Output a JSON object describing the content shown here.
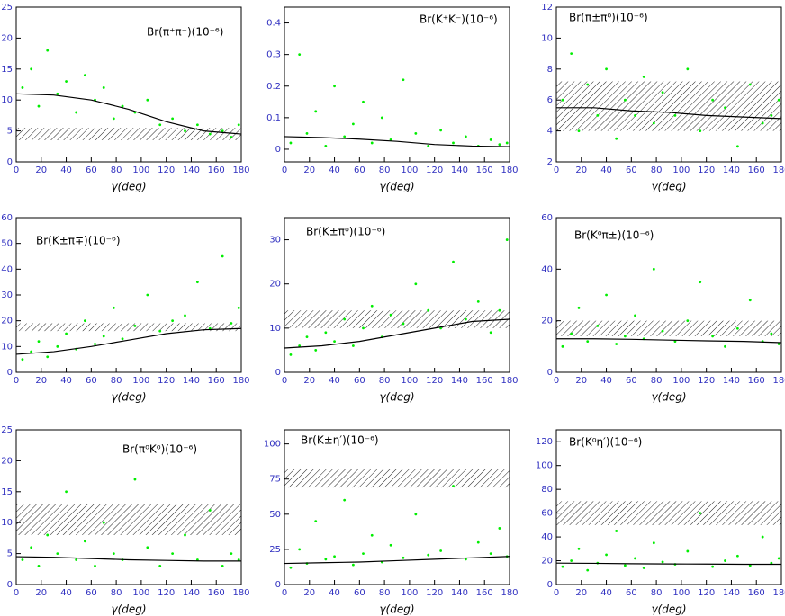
{
  "chart_data": [
    {
      "type": "scatter",
      "title": "Br(π⁺π⁻)(10⁻⁶)",
      "xlabel": "γ(deg)",
      "xlim": [
        0,
        180
      ],
      "xticks": [
        0,
        20,
        40,
        60,
        80,
        100,
        120,
        140,
        160,
        180
      ],
      "ylim": [
        0,
        25
      ],
      "yticks": [
        0,
        5,
        10,
        15,
        20,
        25
      ],
      "band": [
        3.5,
        5.5
      ],
      "points": {
        "color": "#00ee00",
        "x": [
          5,
          12,
          18,
          25,
          33,
          40,
          48,
          55,
          63,
          70,
          78,
          85,
          95,
          105,
          115,
          125,
          135,
          145,
          155,
          165,
          172,
          178
        ],
        "y": [
          12,
          15,
          9,
          18,
          11,
          13,
          8,
          14,
          10,
          12,
          7,
          9,
          8,
          10,
          6,
          7,
          5,
          6,
          4.5,
          5,
          4,
          6
        ]
      },
      "curve": {
        "color": "#000000",
        "x": [
          0,
          30,
          60,
          90,
          120,
          150,
          180
        ],
        "y": [
          11,
          10.8,
          10,
          8.5,
          6.5,
          5,
          4.5
        ]
      }
    },
    {
      "type": "scatter",
      "title": "Br(K⁺K⁻)(10⁻⁶)",
      "xlabel": "γ(deg)",
      "xlim": [
        0,
        180
      ],
      "xticks": [
        0,
        20,
        40,
        60,
        80,
        100,
        120,
        140,
        160,
        180
      ],
      "ylim": [
        -0.04,
        0.45
      ],
      "yticks": [
        0,
        0.1,
        0.2,
        0.3,
        0.4
      ],
      "points": {
        "color": "#00ee00",
        "x": [
          5,
          12,
          18,
          25,
          33,
          40,
          48,
          55,
          63,
          70,
          78,
          85,
          95,
          105,
          115,
          125,
          135,
          145,
          155,
          165,
          172,
          178
        ],
        "y": [
          0.02,
          0.3,
          0.05,
          0.12,
          0.01,
          0.2,
          0.04,
          0.08,
          0.15,
          0.02,
          0.1,
          0.03,
          0.22,
          0.05,
          0.01,
          0.06,
          0.02,
          0.04,
          0.01,
          0.03,
          0.015,
          0.02
        ]
      },
      "curve": {
        "color": "#000000",
        "x": [
          0,
          30,
          60,
          90,
          120,
          150,
          180
        ],
        "y": [
          0.04,
          0.037,
          0.032,
          0.025,
          0.015,
          0.01,
          0.008
        ]
      }
    },
    {
      "type": "scatter",
      "title": "Br(π±π⁰)(10⁻⁶)",
      "xlabel": "γ(deg)",
      "xlim": [
        0,
        180
      ],
      "xticks": [
        0,
        20,
        40,
        60,
        80,
        100,
        120,
        140,
        160,
        180
      ],
      "ylim": [
        2,
        12
      ],
      "yticks": [
        2,
        4,
        6,
        8,
        10,
        12
      ],
      "band": [
        4,
        7.2
      ],
      "points": {
        "color": "#00ee00",
        "x": [
          5,
          12,
          18,
          25,
          33,
          40,
          48,
          55,
          63,
          70,
          78,
          85,
          95,
          105,
          115,
          125,
          135,
          145,
          155,
          165,
          172,
          178
        ],
        "y": [
          6,
          9,
          4,
          7,
          5,
          8,
          3.5,
          6,
          5,
          7.5,
          4.5,
          6.5,
          5,
          8,
          4,
          6,
          5.5,
          3,
          7,
          4.5,
          5,
          6
        ]
      },
      "curve": {
        "color": "#000000",
        "x": [
          0,
          30,
          60,
          90,
          120,
          150,
          180
        ],
        "y": [
          5.5,
          5.5,
          5.3,
          5.2,
          5,
          4.9,
          4.8
        ]
      }
    },
    {
      "type": "scatter",
      "title": "Br(K±π∓)(10⁻⁶)",
      "xlabel": "γ(deg)",
      "xlim": [
        0,
        180
      ],
      "xticks": [
        0,
        20,
        40,
        60,
        80,
        100,
        120,
        140,
        160,
        180
      ],
      "ylim": [
        0,
        60
      ],
      "yticks": [
        0,
        10,
        20,
        30,
        40,
        50,
        60
      ],
      "band": [
        16,
        19
      ],
      "points": {
        "color": "#00ee00",
        "x": [
          5,
          12,
          18,
          25,
          33,
          40,
          48,
          55,
          63,
          70,
          78,
          85,
          95,
          105,
          115,
          125,
          135,
          145,
          155,
          165,
          172,
          178
        ],
        "y": [
          5,
          8,
          12,
          6,
          10,
          15,
          9,
          20,
          11,
          14,
          25,
          13,
          18,
          30,
          16,
          20,
          22,
          35,
          17,
          45,
          19,
          25
        ]
      },
      "curve": {
        "color": "#000000",
        "x": [
          0,
          30,
          60,
          90,
          120,
          150,
          180
        ],
        "y": [
          7,
          8,
          10,
          12.5,
          15,
          16.5,
          17
        ]
      }
    },
    {
      "type": "scatter",
      "title": "Br(K±π⁰)(10⁻⁶)",
      "xlabel": "γ(deg)",
      "xlim": [
        0,
        180
      ],
      "xticks": [
        0,
        20,
        40,
        60,
        80,
        100,
        120,
        140,
        160,
        180
      ],
      "ylim": [
        0,
        35
      ],
      "yticks": [
        0,
        10,
        20,
        30
      ],
      "band": [
        10,
        14
      ],
      "points": {
        "color": "#00ee00",
        "x": [
          5,
          12,
          18,
          25,
          33,
          40,
          48,
          55,
          63,
          70,
          78,
          85,
          95,
          105,
          115,
          125,
          135,
          145,
          155,
          165,
          172,
          178
        ],
        "y": [
          4,
          6,
          8,
          5,
          9,
          7,
          12,
          6,
          10,
          15,
          8,
          13,
          11,
          20,
          14,
          10,
          25,
          12,
          16,
          9,
          14,
          30
        ]
      },
      "curve": {
        "color": "#000000",
        "x": [
          0,
          30,
          60,
          90,
          120,
          150,
          180
        ],
        "y": [
          5.5,
          6,
          7,
          8.5,
          10,
          11.5,
          12
        ]
      }
    },
    {
      "type": "scatter",
      "title": "Br(K⁰π±)(10⁻⁶)",
      "xlabel": "γ(deg)",
      "xlim": [
        0,
        180
      ],
      "xticks": [
        0,
        20,
        40,
        60,
        80,
        100,
        120,
        140,
        160,
        180
      ],
      "ylim": [
        0,
        60
      ],
      "yticks": [
        0,
        20,
        40,
        60
      ],
      "band": [
        14,
        20
      ],
      "points": {
        "color": "#00ee00",
        "x": [
          5,
          12,
          18,
          25,
          33,
          40,
          48,
          55,
          63,
          70,
          78,
          85,
          95,
          105,
          115,
          125,
          135,
          145,
          155,
          165,
          172,
          178
        ],
        "y": [
          10,
          15,
          25,
          12,
          18,
          30,
          11,
          14,
          22,
          13,
          40,
          16,
          12,
          20,
          35,
          14,
          10,
          17,
          28,
          12,
          15,
          11
        ]
      },
      "curve": {
        "color": "#000000",
        "x": [
          0,
          30,
          60,
          90,
          120,
          150,
          180
        ],
        "y": [
          13,
          13,
          12.8,
          12.5,
          12.2,
          12,
          11.5
        ]
      }
    },
    {
      "type": "scatter",
      "title": "Br(π⁰K⁰)(10⁻⁶)",
      "xlabel": "γ(deg)",
      "xlim": [
        0,
        180
      ],
      "xticks": [
        0,
        20,
        40,
        60,
        80,
        100,
        120,
        140,
        160,
        180
      ],
      "ylim": [
        0,
        25
      ],
      "yticks": [
        0,
        5,
        10,
        15,
        20,
        25
      ],
      "band": [
        8,
        13
      ],
      "points": {
        "color": "#00ee00",
        "x": [
          5,
          12,
          18,
          25,
          33,
          40,
          48,
          55,
          63,
          70,
          78,
          85,
          95,
          105,
          115,
          125,
          135,
          145,
          155,
          165,
          172,
          178
        ],
        "y": [
          4,
          6,
          3,
          8,
          5,
          15,
          4,
          7,
          3,
          10,
          5,
          4,
          17,
          6,
          3,
          5,
          8,
          4,
          12,
          3,
          5,
          4
        ]
      },
      "curve": {
        "color": "#000000",
        "x": [
          0,
          30,
          60,
          90,
          120,
          150,
          180
        ],
        "y": [
          4.5,
          4.4,
          4.2,
          4,
          3.9,
          3.8,
          3.8
        ]
      }
    },
    {
      "type": "scatter",
      "title": "Br(K±η′)(10⁻⁶)",
      "xlabel": "γ(deg)",
      "xlim": [
        0,
        180
      ],
      "xticks": [
        0,
        20,
        40,
        60,
        80,
        100,
        120,
        140,
        160,
        180
      ],
      "ylim": [
        0,
        110
      ],
      "yticks": [
        0,
        25,
        50,
        75,
        100
      ],
      "band": [
        69,
        82
      ],
      "points": {
        "color": "#00ee00",
        "x": [
          5,
          12,
          18,
          25,
          33,
          40,
          48,
          55,
          63,
          70,
          78,
          85,
          95,
          105,
          115,
          125,
          135,
          145,
          155,
          165,
          172,
          178
        ],
        "y": [
          12,
          25,
          15,
          45,
          18,
          20,
          60,
          14,
          22,
          35,
          16,
          28,
          19,
          50,
          21,
          24,
          70,
          18,
          30,
          22,
          40,
          20
        ]
      },
      "curve": {
        "color": "#000000",
        "x": [
          0,
          30,
          60,
          90,
          120,
          150,
          180
        ],
        "y": [
          15,
          15.5,
          16,
          17,
          18,
          19,
          20
        ]
      }
    },
    {
      "type": "scatter",
      "title": "Br(K⁰η′)(10⁻⁶)",
      "xlabel": "γ(deg)",
      "xlim": [
        0,
        180
      ],
      "xticks": [
        0,
        20,
        40,
        60,
        80,
        100,
        120,
        140,
        160,
        180
      ],
      "ylim": [
        0,
        130
      ],
      "yticks": [
        0,
        20,
        40,
        60,
        80,
        100,
        120
      ],
      "band": [
        50,
        70
      ],
      "points": {
        "color": "#00ee00",
        "x": [
          5,
          12,
          18,
          25,
          33,
          40,
          48,
          55,
          63,
          70,
          78,
          85,
          95,
          105,
          115,
          125,
          135,
          145,
          155,
          165,
          172,
          178
        ],
        "y": [
          15,
          20,
          30,
          12,
          18,
          25,
          45,
          16,
          22,
          14,
          35,
          19,
          17,
          28,
          60,
          15,
          20,
          24,
          16,
          40,
          18,
          22
        ]
      },
      "curve": {
        "color": "#000000",
        "x": [
          0,
          30,
          60,
          90,
          120,
          150,
          180
        ],
        "y": [
          18,
          17.8,
          17.5,
          17.3,
          17.2,
          17,
          17
        ]
      }
    }
  ]
}
